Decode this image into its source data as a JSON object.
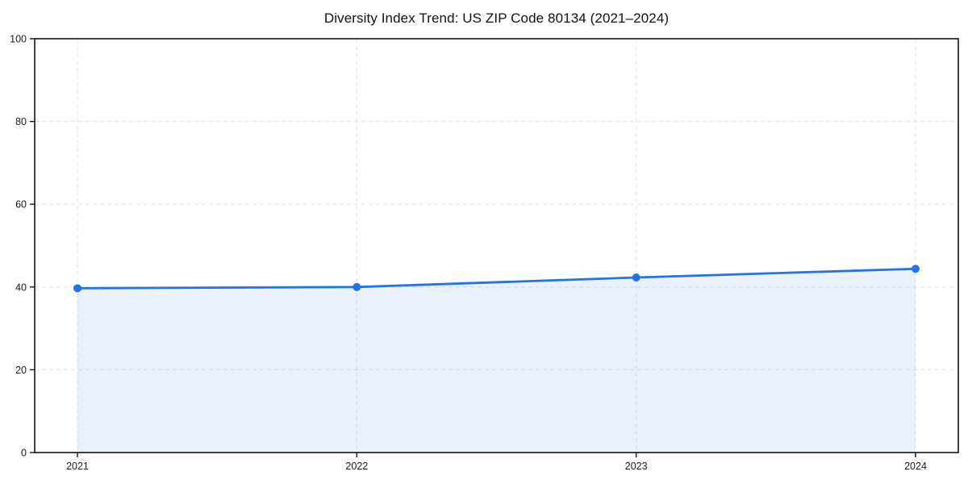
{
  "page": {
    "background": "#ffffff"
  },
  "chart_data": {
    "type": "line",
    "title": "Diversity Index Trend: US ZIP Code 80134 (2021–2024)",
    "x": [
      "2021",
      "2022",
      "2023",
      "2024"
    ],
    "series": [
      {
        "name": "Diversity Index",
        "values": [
          39.7,
          40.0,
          42.3,
          44.4
        ]
      }
    ],
    "xlabel": "",
    "ylabel": "",
    "ylim": [
      0,
      100
    ],
    "yticks": [
      0,
      20,
      40,
      60,
      80,
      100
    ],
    "grid": "dashed-both-axes",
    "legend": "none",
    "area_fill": true,
    "markers": true,
    "colors": {
      "line": "#2273e6",
      "marker": "#2273e6",
      "fill": "rgba(34,115,230,0.10)",
      "grid": "#e2e2e2",
      "axis": "#141414",
      "tick_text": "#1a1a1a"
    }
  }
}
